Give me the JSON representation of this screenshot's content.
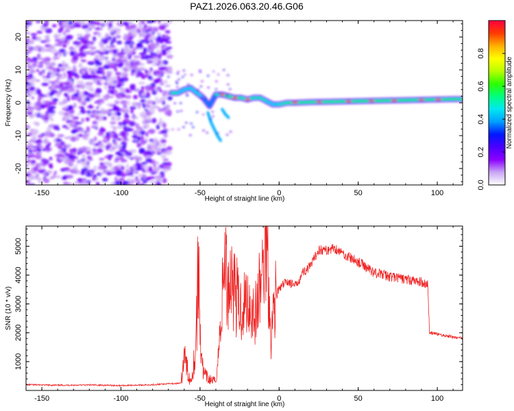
{
  "title": "PAZ1.2026.063.20.46.G06",
  "chart_data": [
    {
      "type": "heatmap",
      "xlabel": "Height of straight line (km)",
      "ylabel": "Frequency (Hz)",
      "xlim": [
        -160,
        116
      ],
      "ylim": [
        -25,
        25
      ],
      "xticks": [
        -150,
        -100,
        -50,
        0,
        50,
        100
      ],
      "yticks": [
        -20,
        -10,
        0,
        10,
        20
      ],
      "colorbar": {
        "label": "Normalized spectral amplitude",
        "range": [
          0,
          1
        ],
        "ticks": [
          0.0,
          0.2,
          0.4,
          0.6,
          0.8
        ],
        "tick_labels": [
          "0.0",
          "0.2",
          "0.4",
          "0.6",
          "0.8"
        ],
        "stops": [
          "#ffffff",
          "#c9a6f5",
          "#8a00ff",
          "#4a00ff",
          "#0018ff",
          "#00a0ff",
          "#00e8f0",
          "#00ff80",
          "#2cff00",
          "#b8ff00",
          "#ffff00",
          "#ffb000",
          "#ff3a00",
          "#ff0040"
        ]
      },
      "ridge": [
        {
          "x": -68,
          "f": 3.0,
          "a": 0.55
        },
        {
          "x": -64,
          "f": 3.0,
          "a": 0.5
        },
        {
          "x": -60,
          "f": 4.0,
          "a": 0.45
        },
        {
          "x": -56,
          "f": 4.5,
          "a": 0.5
        },
        {
          "x": -52,
          "f": 3.0,
          "a": 0.45
        },
        {
          "x": -48,
          "f": 1.5,
          "a": 0.45
        },
        {
          "x": -44,
          "f": -1.0,
          "a": 0.4
        },
        {
          "x": -40,
          "f": 2.5,
          "a": 0.5
        },
        {
          "x": -36,
          "f": 2.5,
          "a": 0.6
        },
        {
          "x": -32,
          "f": 2.0,
          "a": 0.6
        },
        {
          "x": -28,
          "f": 1.5,
          "a": 0.75
        },
        {
          "x": -24,
          "f": 1.5,
          "a": 0.6
        },
        {
          "x": -20,
          "f": 1.0,
          "a": 0.55
        },
        {
          "x": -16,
          "f": 1.5,
          "a": 0.55
        },
        {
          "x": -12,
          "f": 1.5,
          "a": 0.5
        },
        {
          "x": -8,
          "f": 0.5,
          "a": 0.5
        },
        {
          "x": -4,
          "f": -0.5,
          "a": 0.45
        },
        {
          "x": 0,
          "f": -0.5,
          "a": 0.5
        },
        {
          "x": 5,
          "f": 0.0,
          "a": 0.6
        },
        {
          "x": 10,
          "f": 0.0,
          "a": 0.6
        },
        {
          "x": 20,
          "f": 0.2,
          "a": 0.62
        },
        {
          "x": 30,
          "f": 0.3,
          "a": 0.65
        },
        {
          "x": 40,
          "f": 0.4,
          "a": 0.62
        },
        {
          "x": 50,
          "f": 0.5,
          "a": 0.6
        },
        {
          "x": 60,
          "f": 0.6,
          "a": 0.62
        },
        {
          "x": 70,
          "f": 0.7,
          "a": 0.65
        },
        {
          "x": 80,
          "f": 0.8,
          "a": 0.62
        },
        {
          "x": 90,
          "f": 0.9,
          "a": 0.6
        },
        {
          "x": 100,
          "f": 1.0,
          "a": 0.62
        },
        {
          "x": 110,
          "f": 1.1,
          "a": 0.65
        },
        {
          "x": 116,
          "f": 1.1,
          "a": 0.65
        }
      ],
      "branches": [
        {
          "points": [
            [
              -45,
              -3
            ],
            [
              -43,
              -6
            ],
            [
              -41,
              -8
            ],
            [
              -39,
              -10
            ],
            [
              -37,
              -11.5
            ]
          ],
          "a": 0.4
        },
        {
          "points": [
            [
              -36,
              -2
            ],
            [
              -34,
              -3.5
            ],
            [
              -32,
              -4.5
            ]
          ],
          "a": 0.4
        }
      ]
    },
    {
      "type": "line",
      "xlabel": "Height of straight line (km)",
      "ylabel": "SNR (10 * v/v)",
      "xlim": [
        -160,
        116
      ],
      "ylim": [
        0,
        5700
      ],
      "xticks": [
        -150,
        -100,
        -50,
        0,
        50,
        100
      ],
      "yticks": [
        1000,
        2000,
        3000,
        4000,
        5000
      ],
      "color": "#ee2222",
      "series": [
        {
          "name": "SNR",
          "points": [
            [
              -160,
              200
            ],
            [
              -140,
              180
            ],
            [
              -120,
              190
            ],
            [
              -100,
              170
            ],
            [
              -80,
              200
            ],
            [
              -70,
              230
            ],
            [
              -62,
              250
            ],
            [
              -60,
              1200
            ],
            [
              -58,
              700
            ],
            [
              -56,
              300
            ],
            [
              -53,
              1300
            ],
            [
              -51,
              4300
            ],
            [
              -50,
              2200
            ],
            [
              -48,
              600
            ],
            [
              -45,
              400
            ],
            [
              -42,
              350
            ],
            [
              -40,
              320
            ],
            [
              -38,
              1500
            ],
            [
              -36,
              3200
            ],
            [
              -34,
              4900
            ],
            [
              -33,
              3500
            ],
            [
              -30,
              4000
            ],
            [
              -25,
              2800
            ],
            [
              -20,
              3200
            ],
            [
              -15,
              2600
            ],
            [
              -10,
              4200
            ],
            [
              -8,
              5600
            ],
            [
              -6,
              3000
            ],
            [
              -5,
              1800
            ],
            [
              -3,
              3200
            ],
            [
              0,
              3500
            ],
            [
              5,
              3800
            ],
            [
              10,
              3600
            ],
            [
              15,
              4100
            ],
            [
              20,
              4300
            ],
            [
              25,
              4900
            ],
            [
              30,
              4850
            ],
            [
              35,
              4950
            ],
            [
              40,
              4750
            ],
            [
              50,
              4450
            ],
            [
              60,
              4100
            ],
            [
              70,
              3950
            ],
            [
              80,
              3850
            ],
            [
              90,
              3750
            ],
            [
              94,
              3700
            ],
            [
              95,
              2000
            ],
            [
              100,
              1950
            ],
            [
              110,
              1850
            ],
            [
              116,
              1800
            ]
          ]
        }
      ]
    }
  ]
}
